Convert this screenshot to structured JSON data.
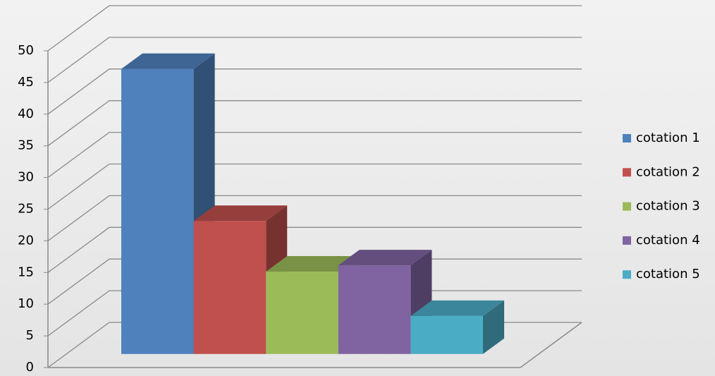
{
  "chart_data": {
    "type": "bar3d",
    "series": [
      {
        "name": "cotation 1",
        "color": "#4f81bd",
        "values": [
          45
        ]
      },
      {
        "name": "cotation 2",
        "color": "#c0504d",
        "values": [
          21
        ]
      },
      {
        "name": "cotation 3",
        "color": "#9bbb59",
        "values": [
          13
        ]
      },
      {
        "name": "cotation 4",
        "color": "#8064a2",
        "values": [
          14
        ]
      },
      {
        "name": "cotation 5",
        "color": "#4bacc6",
        "values": [
          6
        ]
      }
    ],
    "ylim": [
      0,
      50
    ],
    "yticks": [
      0,
      5,
      10,
      15,
      20,
      25,
      30,
      35,
      40,
      45,
      50
    ],
    "grid": true,
    "legend": "right"
  }
}
